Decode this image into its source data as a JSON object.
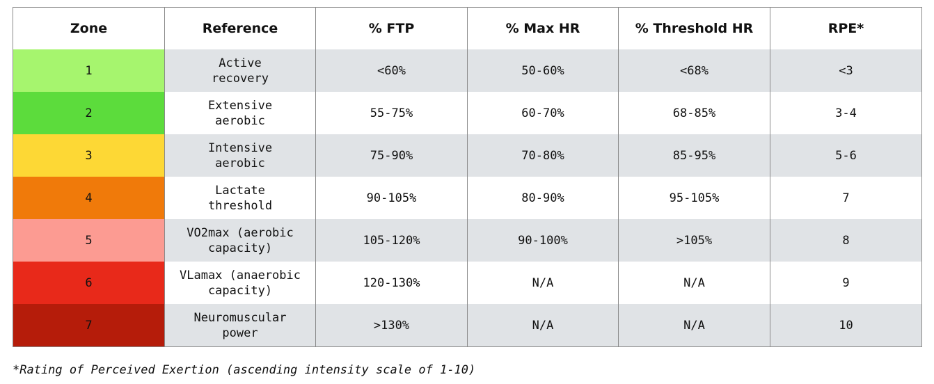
{
  "table": {
    "columns": [
      "Zone",
      "Reference",
      "% FTP",
      "% Max HR",
      "% Threshold HR",
      "RPE*"
    ],
    "rows": [
      {
        "zone": "1",
        "color": "#a6f56e",
        "reference": [
          "Active",
          "recovery"
        ],
        "ftp": "<60%",
        "max_hr": "50-60%",
        "threshold_hr": "<68%",
        "rpe": "<3"
      },
      {
        "zone": "2",
        "color": "#5cdc3c",
        "reference": [
          "Extensive",
          "aerobic"
        ],
        "ftp": "55-75%",
        "max_hr": "60-70%",
        "threshold_hr": "68-85%",
        "rpe": "3-4"
      },
      {
        "zone": "3",
        "color": "#fdd835",
        "reference": [
          "Intensive",
          "aerobic"
        ],
        "ftp": "75-90%",
        "max_hr": "70-80%",
        "threshold_hr": "85-95%",
        "rpe": "5-6"
      },
      {
        "zone": "4",
        "color": "#f07a0a",
        "reference": [
          "Lactate",
          "threshold"
        ],
        "ftp": "90-105%",
        "max_hr": "80-90%",
        "threshold_hr": "95-105%",
        "rpe": "7"
      },
      {
        "zone": "5",
        "color": "#fc9b92",
        "reference": [
          "VO2max (aerobic",
          "capacity)"
        ],
        "ftp": "105-120%",
        "max_hr": "90-100%",
        "threshold_hr": ">105%",
        "rpe": "8"
      },
      {
        "zone": "6",
        "color": "#e8291a",
        "reference": [
          "VLamax (anaerobic",
          "capacity)"
        ],
        "ftp": "120-130%",
        "max_hr": "N/A",
        "threshold_hr": "N/A",
        "rpe": "9"
      },
      {
        "zone": "7",
        "color": "#b51c0a",
        "reference": [
          "Neuromuscular",
          "power"
        ],
        "ftp": ">130%",
        "max_hr": "N/A",
        "threshold_hr": "N/A",
        "rpe": "10"
      }
    ]
  },
  "footnote": "*Rating of Perceived Exertion (ascending intensity scale of 1-10)"
}
